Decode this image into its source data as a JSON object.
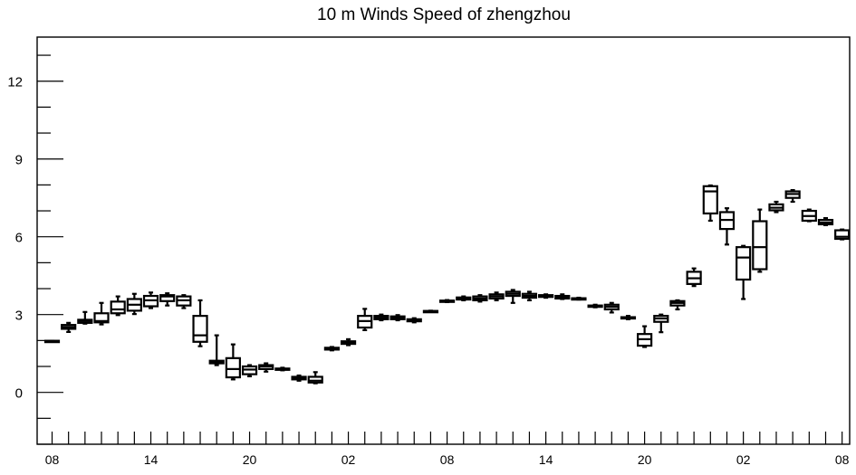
{
  "chart_data": {
    "type": "box",
    "title": "10 m Winds Speed of zhengzhou",
    "xlabel": "",
    "ylabel": "",
    "ylim": [
      -2,
      13.7
    ],
    "y_major_ticks": [
      0,
      3,
      6,
      9,
      12
    ],
    "y_tick_labels": [
      "0",
      "3",
      "6",
      "9",
      "12"
    ],
    "y_minor_step": 1,
    "x_tick_labels": [
      {
        "index": 0,
        "label": "08"
      },
      {
        "index": 6,
        "label": "14"
      },
      {
        "index": 12,
        "label": "20"
      },
      {
        "index": 18,
        "label": "02"
      },
      {
        "index": 24,
        "label": "08"
      },
      {
        "index": 30,
        "label": "14"
      },
      {
        "index": 36,
        "label": "20"
      },
      {
        "index": 42,
        "label": "02"
      },
      {
        "index": 48,
        "label": "08"
      }
    ],
    "grid": false,
    "boxes": [
      {
        "i": 0,
        "min": 1.97,
        "q1": 1.97,
        "median": 1.97,
        "q3": 1.99,
        "max": 1.99
      },
      {
        "i": 1,
        "min": 2.33,
        "q1": 2.45,
        "median": 2.52,
        "q3": 2.6,
        "max": 2.68
      },
      {
        "i": 2,
        "min": 2.65,
        "q1": 2.68,
        "median": 2.75,
        "q3": 2.8,
        "max": 3.1
      },
      {
        "i": 3,
        "min": 2.62,
        "q1": 2.7,
        "median": 2.75,
        "q3": 3.05,
        "max": 3.45
      },
      {
        "i": 4,
        "min": 2.98,
        "q1": 3.05,
        "median": 3.2,
        "q3": 3.5,
        "max": 3.7
      },
      {
        "i": 5,
        "min": 3.02,
        "q1": 3.15,
        "median": 3.38,
        "q3": 3.6,
        "max": 3.8
      },
      {
        "i": 6,
        "min": 3.25,
        "q1": 3.32,
        "median": 3.55,
        "q3": 3.72,
        "max": 3.85
      },
      {
        "i": 7,
        "min": 3.35,
        "q1": 3.52,
        "median": 3.7,
        "q3": 3.75,
        "max": 3.82
      },
      {
        "i": 8,
        "min": 3.25,
        "q1": 3.35,
        "median": 3.55,
        "q3": 3.7,
        "max": 3.75
      },
      {
        "i": 9,
        "min": 1.78,
        "q1": 1.95,
        "median": 2.2,
        "q3": 2.95,
        "max": 3.55
      },
      {
        "i": 10,
        "min": 1.05,
        "q1": 1.12,
        "median": 1.18,
        "q3": 1.22,
        "max": 2.2
      },
      {
        "i": 11,
        "min": 0.5,
        "q1": 0.58,
        "median": 0.9,
        "q3": 1.32,
        "max": 1.85
      },
      {
        "i": 12,
        "min": 0.62,
        "q1": 0.7,
        "median": 0.88,
        "q3": 1.0,
        "max": 1.05
      },
      {
        "i": 13,
        "min": 0.8,
        "q1": 0.9,
        "median": 1.0,
        "q3": 1.05,
        "max": 1.12
      },
      {
        "i": 14,
        "min": 0.85,
        "q1": 0.88,
        "median": 0.9,
        "q3": 0.92,
        "max": 0.95
      },
      {
        "i": 15,
        "min": 0.45,
        "q1": 0.5,
        "median": 0.55,
        "q3": 0.6,
        "max": 0.65
      },
      {
        "i": 16,
        "min": 0.35,
        "q1": 0.38,
        "median": 0.45,
        "q3": 0.6,
        "max": 0.78
      },
      {
        "i": 17,
        "min": 1.62,
        "q1": 1.65,
        "median": 1.68,
        "q3": 1.72,
        "max": 1.75
      },
      {
        "i": 18,
        "min": 1.82,
        "q1": 1.87,
        "median": 1.92,
        "q3": 1.97,
        "max": 2.05
      },
      {
        "i": 19,
        "min": 2.4,
        "q1": 2.5,
        "median": 2.75,
        "q3": 2.95,
        "max": 3.22
      },
      {
        "i": 20,
        "min": 2.78,
        "q1": 2.82,
        "median": 2.88,
        "q3": 2.95,
        "max": 3.0
      },
      {
        "i": 21,
        "min": 2.78,
        "q1": 2.82,
        "median": 2.88,
        "q3": 2.93,
        "max": 2.98
      },
      {
        "i": 22,
        "min": 2.7,
        "q1": 2.74,
        "median": 2.78,
        "q3": 2.82,
        "max": 2.86
      },
      {
        "i": 23,
        "min": 3.1,
        "q1": 3.12,
        "median": 3.13,
        "q3": 3.14,
        "max": 3.15
      },
      {
        "i": 24,
        "min": 3.48,
        "q1": 3.5,
        "median": 3.52,
        "q3": 3.54,
        "max": 3.56
      },
      {
        "i": 25,
        "min": 3.55,
        "q1": 3.58,
        "median": 3.62,
        "q3": 3.66,
        "max": 3.7
      },
      {
        "i": 26,
        "min": 3.5,
        "q1": 3.55,
        "median": 3.62,
        "q3": 3.7,
        "max": 3.75
      },
      {
        "i": 27,
        "min": 3.55,
        "q1": 3.62,
        "median": 3.7,
        "q3": 3.78,
        "max": 3.85
      },
      {
        "i": 28,
        "min": 3.45,
        "q1": 3.72,
        "median": 3.8,
        "q3": 3.88,
        "max": 3.95
      },
      {
        "i": 29,
        "min": 3.55,
        "q1": 3.65,
        "median": 3.72,
        "q3": 3.8,
        "max": 3.88
      },
      {
        "i": 30,
        "min": 3.65,
        "q1": 3.68,
        "median": 3.72,
        "q3": 3.75,
        "max": 3.78
      },
      {
        "i": 31,
        "min": 3.6,
        "q1": 3.62,
        "median": 3.68,
        "q3": 3.72,
        "max": 3.78
      },
      {
        "i": 32,
        "min": 3.58,
        "q1": 3.6,
        "median": 3.62,
        "q3": 3.63,
        "max": 3.65
      },
      {
        "i": 33,
        "min": 3.28,
        "q1": 3.3,
        "median": 3.33,
        "q3": 3.35,
        "max": 3.38
      },
      {
        "i": 34,
        "min": 3.08,
        "q1": 3.2,
        "median": 3.3,
        "q3": 3.38,
        "max": 3.45
      },
      {
        "i": 35,
        "min": 2.82,
        "q1": 2.85,
        "median": 2.88,
        "q3": 2.9,
        "max": 2.95
      },
      {
        "i": 36,
        "min": 1.75,
        "q1": 1.8,
        "median": 2.05,
        "q3": 2.25,
        "max": 2.55
      },
      {
        "i": 37,
        "min": 2.32,
        "q1": 2.72,
        "median": 2.85,
        "q3": 2.95,
        "max": 3.0
      },
      {
        "i": 38,
        "min": 3.2,
        "q1": 3.35,
        "median": 3.45,
        "q3": 3.52,
        "max": 3.55
      },
      {
        "i": 39,
        "min": 4.1,
        "q1": 4.18,
        "median": 4.4,
        "q3": 4.65,
        "max": 4.78
      },
      {
        "i": 40,
        "min": 6.62,
        "q1": 6.9,
        "median": 7.75,
        "q3": 7.95,
        "max": 7.98
      },
      {
        "i": 41,
        "min": 5.7,
        "q1": 6.3,
        "median": 6.65,
        "q3": 6.95,
        "max": 7.1
      },
      {
        "i": 42,
        "min": 3.6,
        "q1": 4.35,
        "median": 5.2,
        "q3": 5.6,
        "max": 5.65
      },
      {
        "i": 43,
        "min": 4.65,
        "q1": 4.75,
        "median": 5.6,
        "q3": 6.6,
        "max": 7.05
      },
      {
        "i": 44,
        "min": 6.95,
        "q1": 7.02,
        "median": 7.12,
        "q3": 7.25,
        "max": 7.35
      },
      {
        "i": 45,
        "min": 7.35,
        "q1": 7.5,
        "median": 7.65,
        "q3": 7.75,
        "max": 7.8
      },
      {
        "i": 46,
        "min": 6.6,
        "q1": 6.62,
        "median": 6.8,
        "q3": 7.0,
        "max": 7.05
      },
      {
        "i": 47,
        "min": 6.45,
        "q1": 6.48,
        "median": 6.55,
        "q3": 6.65,
        "max": 6.72
      },
      {
        "i": 48,
        "min": 5.9,
        "q1": 5.92,
        "median": 6.0,
        "q3": 6.25,
        "max": 6.28
      }
    ]
  }
}
